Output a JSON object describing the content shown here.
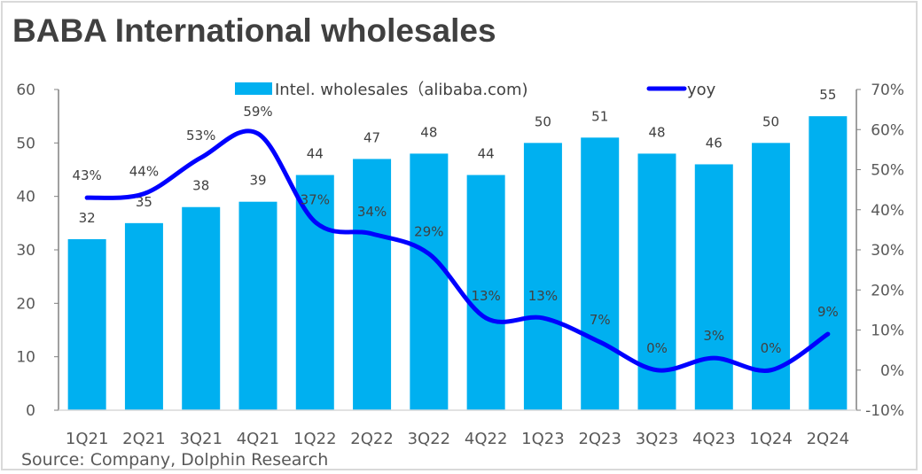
{
  "title": "BABA International wholesales",
  "source": "Source: Company, Dolphin Research",
  "chart_data": {
    "type": "bar+line",
    "title": "BABA International wholesales",
    "categories": [
      "1Q21",
      "2Q21",
      "3Q21",
      "4Q21",
      "1Q22",
      "2Q22",
      "3Q22",
      "4Q22",
      "1Q23",
      "2Q23",
      "3Q23",
      "4Q23",
      "1Q24",
      "2Q24"
    ],
    "series": [
      {
        "name": "Intel. wholesales（alibaba.com)",
        "type": "bar",
        "axis": "left",
        "color": "#00b0f0",
        "values": [
          32,
          35,
          38,
          39,
          44,
          47,
          48,
          44,
          50,
          51,
          48,
          46,
          50,
          55
        ]
      },
      {
        "name": "yoy",
        "type": "line",
        "axis": "right",
        "color": "#0000ff",
        "values": [
          43,
          44,
          53,
          59,
          37,
          34,
          29,
          13,
          13,
          7,
          0,
          3,
          0,
          9
        ],
        "labels": [
          "43%",
          "44%",
          "53%",
          "59%",
          "37%",
          "34%",
          "29%",
          "13%",
          "13%",
          "7%",
          "0%",
          "3%",
          "0%",
          "9%"
        ]
      }
    ],
    "y_left": {
      "range": [
        0,
        60
      ],
      "ticks": [
        "0",
        "10",
        "20",
        "30",
        "40",
        "50",
        "60"
      ]
    },
    "y_right": {
      "range": [
        -10,
        70
      ],
      "ticks": [
        "-10%",
        "0%",
        "10%",
        "20%",
        "30%",
        "40%",
        "50%",
        "60%",
        "70%"
      ]
    },
    "legend": "top",
    "grid": false
  }
}
